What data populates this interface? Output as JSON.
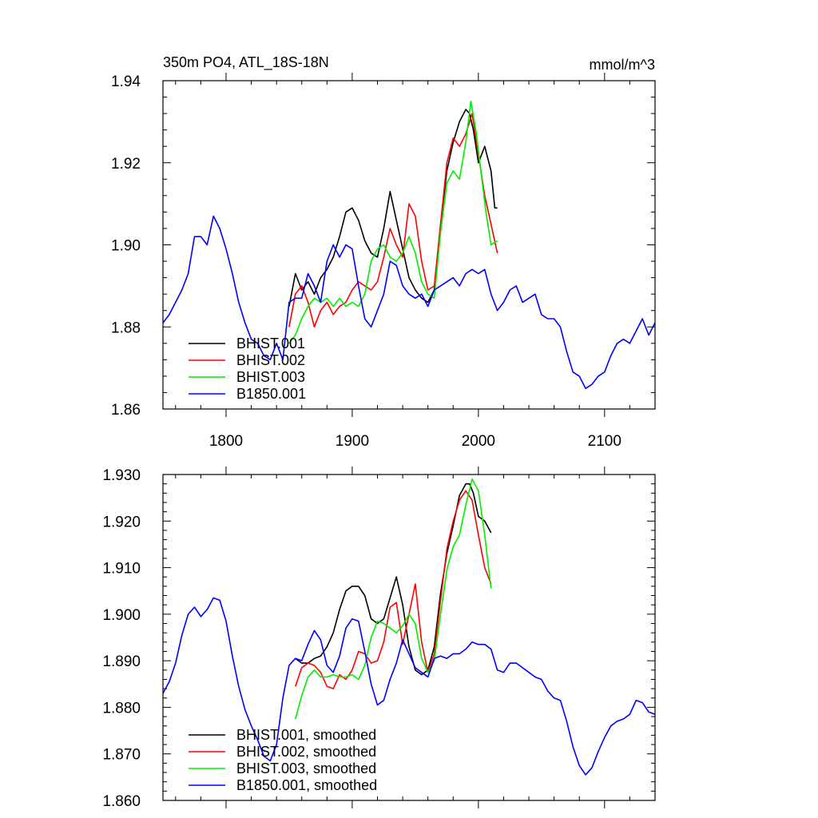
{
  "chart_data": [
    {
      "type": "line",
      "title_left": "350m PO4, ATL_18S-18N",
      "title_right": "mmol/m^3",
      "xlabel": "",
      "ylabel": "",
      "xlim": [
        1750,
        2140
      ],
      "ylim": [
        1.86,
        1.94
      ],
      "xticks": [
        1800,
        1900,
        2000,
        2100
      ],
      "xtick_labels": [
        "1800",
        "1900",
        "2000",
        "2100"
      ],
      "yticks": [
        1.86,
        1.88,
        1.9,
        1.92,
        1.94
      ],
      "ytick_labels": [
        "1.86",
        "1.88",
        "1.90",
        "1.92",
        "1.94"
      ],
      "legend_position": "bottom-left",
      "grid": false,
      "series": [
        {
          "name": "BHIST.001",
          "color": "#000000",
          "x": [
            1850,
            1855,
            1860,
            1865,
            1870,
            1875,
            1880,
            1885,
            1890,
            1895,
            1900,
            1905,
            1910,
            1915,
            1920,
            1925,
            1930,
            1935,
            1940,
            1945,
            1950,
            1955,
            1960,
            1965,
            1970,
            1975,
            1980,
            1985,
            1990,
            1993,
            1996,
            2000,
            2005,
            2010,
            2013,
            2015
          ],
          "y": [
            1.885,
            1.893,
            1.889,
            1.891,
            1.888,
            1.892,
            1.894,
            1.897,
            1.902,
            1.908,
            1.909,
            1.906,
            1.901,
            1.898,
            1.897,
            1.904,
            1.913,
            1.906,
            1.899,
            1.892,
            1.889,
            1.887,
            1.886,
            1.889,
            1.905,
            1.918,
            1.925,
            1.93,
            1.933,
            1.932,
            1.928,
            1.92,
            1.924,
            1.918,
            1.909,
            1.909
          ]
        },
        {
          "name": "BHIST.002",
          "color": "#ff0000",
          "x": [
            1850,
            1855,
            1860,
            1865,
            1870,
            1875,
            1880,
            1885,
            1890,
            1895,
            1900,
            1905,
            1910,
            1915,
            1920,
            1925,
            1930,
            1935,
            1940,
            1945,
            1950,
            1955,
            1960,
            1965,
            1970,
            1975,
            1980,
            1985,
            1990,
            1995,
            2000,
            2005,
            2010,
            2015
          ],
          "y": [
            1.88,
            1.888,
            1.89,
            1.886,
            1.88,
            1.884,
            1.886,
            1.883,
            1.885,
            1.886,
            1.889,
            1.891,
            1.89,
            1.889,
            1.891,
            1.897,
            1.904,
            1.9,
            1.897,
            1.91,
            1.907,
            1.896,
            1.889,
            1.89,
            1.905,
            1.92,
            1.926,
            1.924,
            1.927,
            1.932,
            1.922,
            1.912,
            1.905,
            1.898
          ]
        },
        {
          "name": "BHIST.003",
          "color": "#00ee00",
          "x": [
            1850,
            1855,
            1860,
            1865,
            1870,
            1875,
            1880,
            1885,
            1890,
            1895,
            1900,
            1905,
            1910,
            1915,
            1920,
            1925,
            1930,
            1935,
            1940,
            1945,
            1950,
            1955,
            1960,
            1965,
            1970,
            1975,
            1980,
            1985,
            1990,
            1994,
            1998,
            2002,
            2006,
            2010,
            2015
          ],
          "y": [
            1.876,
            1.878,
            1.882,
            1.885,
            1.887,
            1.886,
            1.887,
            1.885,
            1.887,
            1.885,
            1.886,
            1.885,
            1.888,
            1.896,
            1.899,
            1.9,
            1.897,
            1.896,
            1.898,
            1.902,
            1.898,
            1.891,
            1.888,
            1.887,
            1.903,
            1.915,
            1.918,
            1.916,
            1.925,
            1.935,
            1.928,
            1.918,
            1.908,
            1.9,
            1.901
          ]
        },
        {
          "name": "B1850.001",
          "color": "#0000ff",
          "x": [
            1750,
            1755,
            1760,
            1765,
            1770,
            1775,
            1780,
            1785,
            1790,
            1795,
            1800,
            1805,
            1810,
            1815,
            1820,
            1825,
            1830,
            1835,
            1840,
            1845,
            1850,
            1855,
            1860,
            1865,
            1870,
            1875,
            1880,
            1885,
            1890,
            1895,
            1900,
            1905,
            1910,
            1915,
            1920,
            1925,
            1930,
            1935,
            1940,
            1945,
            1950,
            1955,
            1960,
            1965,
            1970,
            1975,
            1980,
            1985,
            1990,
            1995,
            2000,
            2005,
            2010,
            2015,
            2020,
            2025,
            2030,
            2035,
            2040,
            2045,
            2050,
            2055,
            2060,
            2065,
            2070,
            2075,
            2080,
            2085,
            2090,
            2095,
            2100,
            2105,
            2110,
            2115,
            2120,
            2125,
            2130,
            2135,
            2140
          ],
          "y": [
            1.881,
            1.883,
            1.886,
            1.889,
            1.893,
            1.902,
            1.902,
            1.9,
            1.907,
            1.904,
            1.899,
            1.893,
            1.886,
            1.881,
            1.877,
            1.876,
            1.873,
            1.872,
            1.876,
            1.872,
            1.886,
            1.887,
            1.887,
            1.893,
            1.89,
            1.886,
            1.896,
            1.9,
            1.897,
            1.9,
            1.899,
            1.89,
            1.882,
            1.88,
            1.884,
            1.888,
            1.896,
            1.895,
            1.89,
            1.888,
            1.887,
            1.888,
            1.885,
            1.889,
            1.89,
            1.891,
            1.892,
            1.89,
            1.893,
            1.894,
            1.893,
            1.894,
            1.888,
            1.884,
            1.886,
            1.889,
            1.89,
            1.886,
            1.887,
            1.888,
            1.883,
            1.882,
            1.882,
            1.88,
            1.874,
            1.869,
            1.868,
            1.865,
            1.866,
            1.868,
            1.869,
            1.873,
            1.876,
            1.877,
            1.876,
            1.879,
            1.882,
            1.878,
            1.881
          ]
        }
      ]
    },
    {
      "type": "line",
      "xlabel": "",
      "ylabel": "",
      "xlim": [
        1750,
        2140
      ],
      "ylim": [
        1.86,
        1.93
      ],
      "xticks": [
        1800,
        1900,
        2000,
        2100
      ],
      "yticks": [
        1.86,
        1.87,
        1.88,
        1.89,
        1.9,
        1.91,
        1.92,
        1.93
      ],
      "ytick_labels": [
        "1.860",
        "1.870",
        "1.880",
        "1.890",
        "1.900",
        "1.910",
        "1.920",
        "1.930"
      ],
      "legend_position": "bottom-left",
      "grid": false,
      "series": [
        {
          "name": "BHIST.001, smoothed",
          "color": "#000000",
          "x": [
            1855,
            1860,
            1865,
            1870,
            1875,
            1880,
            1885,
            1890,
            1895,
            1900,
            1905,
            1910,
            1915,
            1920,
            1925,
            1930,
            1935,
            1940,
            1945,
            1950,
            1955,
            1960,
            1965,
            1970,
            1975,
            1980,
            1985,
            1990,
            1993,
            1996,
            2000,
            2005,
            2010
          ],
          "y": [
            1.8905,
            1.8895,
            1.8895,
            1.8905,
            1.891,
            1.893,
            1.896,
            1.901,
            1.905,
            1.906,
            1.906,
            1.904,
            1.899,
            1.898,
            1.899,
            1.9035,
            1.908,
            1.902,
            1.893,
            1.888,
            1.887,
            1.888,
            1.893,
            1.9045,
            1.913,
            1.919,
            1.9255,
            1.928,
            1.928,
            1.926,
            1.921,
            1.92,
            1.9175
          ]
        },
        {
          "name": "BHIST.002, smoothed",
          "color": "#ff0000",
          "x": [
            1855,
            1860,
            1865,
            1870,
            1875,
            1880,
            1885,
            1890,
            1895,
            1900,
            1905,
            1910,
            1915,
            1920,
            1925,
            1930,
            1935,
            1940,
            1945,
            1950,
            1955,
            1960,
            1965,
            1970,
            1975,
            1980,
            1985,
            1990,
            1995,
            2000,
            2005,
            2010
          ],
          "y": [
            1.8845,
            1.8885,
            1.8895,
            1.889,
            1.8875,
            1.8845,
            1.884,
            1.887,
            1.886,
            1.888,
            1.892,
            1.8915,
            1.8895,
            1.89,
            1.894,
            1.9015,
            1.9025,
            1.8935,
            1.9,
            1.9065,
            1.894,
            1.8875,
            1.8915,
            1.903,
            1.914,
            1.92,
            1.9245,
            1.9265,
            1.9245,
            1.917,
            1.91,
            1.9065
          ]
        },
        {
          "name": "BHIST.003, smoothed",
          "color": "#00ee00",
          "x": [
            1855,
            1860,
            1865,
            1870,
            1875,
            1880,
            1885,
            1890,
            1895,
            1900,
            1905,
            1910,
            1915,
            1920,
            1925,
            1930,
            1935,
            1940,
            1945,
            1950,
            1955,
            1960,
            1965,
            1970,
            1975,
            1980,
            1985,
            1990,
            1995,
            2000,
            2005,
            2010
          ],
          "y": [
            1.8775,
            1.8825,
            1.8865,
            1.888,
            1.8865,
            1.8865,
            1.887,
            1.8865,
            1.8865,
            1.887,
            1.886,
            1.889,
            1.895,
            1.8985,
            1.898,
            1.897,
            1.896,
            1.8975,
            1.9,
            1.898,
            1.8905,
            1.8875,
            1.89,
            1.9,
            1.9095,
            1.9145,
            1.917,
            1.9235,
            1.929,
            1.9265,
            1.917,
            1.9055
          ]
        },
        {
          "name": "B1850.001, smoothed",
          "color": "#0000ff",
          "x": [
            1750,
            1755,
            1760,
            1765,
            1770,
            1775,
            1780,
            1785,
            1790,
            1795,
            1800,
            1805,
            1810,
            1815,
            1820,
            1825,
            1830,
            1835,
            1840,
            1845,
            1850,
            1855,
            1860,
            1865,
            1870,
            1875,
            1880,
            1885,
            1890,
            1895,
            1900,
            1905,
            1910,
            1915,
            1920,
            1925,
            1930,
            1935,
            1940,
            1945,
            1950,
            1955,
            1960,
            1965,
            1970,
            1975,
            1980,
            1985,
            1990,
            1995,
            2000,
            2005,
            2010,
            2015,
            2020,
            2025,
            2030,
            2035,
            2040,
            2045,
            2050,
            2055,
            2060,
            2065,
            2070,
            2075,
            2080,
            2085,
            2090,
            2095,
            2100,
            2105,
            2110,
            2115,
            2120,
            2125,
            2130,
            2135,
            2140
          ],
          "y": [
            1.883,
            1.8855,
            1.8895,
            1.8955,
            1.9,
            1.9015,
            1.8995,
            1.901,
            1.9035,
            1.903,
            1.8985,
            1.891,
            1.8845,
            1.8795,
            1.876,
            1.873,
            1.8695,
            1.8685,
            1.872,
            1.882,
            1.889,
            1.8905,
            1.89,
            1.8935,
            1.8965,
            1.8945,
            1.889,
            1.8875,
            1.891,
            1.897,
            1.899,
            1.8985,
            1.892,
            1.885,
            1.8805,
            1.8815,
            1.886,
            1.8895,
            1.8945,
            1.8915,
            1.8885,
            1.8875,
            1.8865,
            1.8905,
            1.891,
            1.8905,
            1.8915,
            1.8915,
            1.8925,
            1.894,
            1.8935,
            1.8935,
            1.8925,
            1.888,
            1.8875,
            1.8895,
            1.8895,
            1.8885,
            1.8875,
            1.8865,
            1.886,
            1.8835,
            1.882,
            1.8815,
            1.877,
            1.8715,
            1.8675,
            1.8655,
            1.867,
            1.8705,
            1.8735,
            1.876,
            1.877,
            1.8775,
            1.8785,
            1.8815,
            1.881,
            1.879,
            1.8785
          ]
        }
      ]
    }
  ]
}
